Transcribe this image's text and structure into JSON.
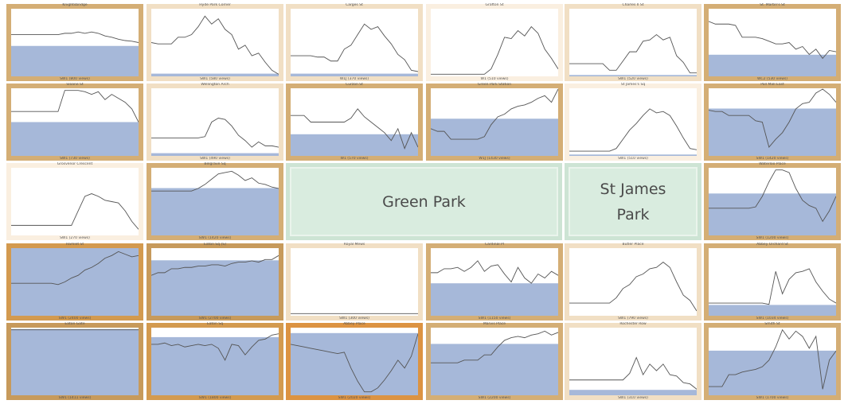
{
  "colors": {
    "border_shades": [
      "#faefe0",
      "#f1dfc4",
      "#e2c797",
      "#d4ae75",
      "#c79a5b",
      "#d39a4f",
      "#dc9342"
    ],
    "fill": "#a6b8d9",
    "line": "#555555",
    "park_fill": "#d9ecdf",
    "park_border": "#cde4d4"
  },
  "parks": [
    {
      "name": "Green Park",
      "lines": [
        "Green Park"
      ]
    },
    {
      "name": "St James Park",
      "lines": [
        "St James",
        "Park"
      ]
    }
  ],
  "chart_data": {
    "type": "line",
    "description": "Small-multiple line charts per street; blue band = median level, border shade = level",
    "panels": [
      {
        "title": "Knightsbridge",
        "footer": "SW1 (800 views)",
        "shade": 3,
        "band": 0.45,
        "values": [
          0.62,
          0.62,
          0.62,
          0.62,
          0.62,
          0.62,
          0.62,
          0.62,
          0.64,
          0.64,
          0.66,
          0.64,
          0.66,
          0.64,
          0.6,
          0.58,
          0.55,
          0.53,
          0.52,
          0.5
        ]
      },
      {
        "title": "Hyde Park Corner",
        "footer": "SW1 (580 views)",
        "shade": 1,
        "band": 0.04,
        "values": [
          0.5,
          0.48,
          0.48,
          0.48,
          0.58,
          0.58,
          0.62,
          0.74,
          0.9,
          0.78,
          0.86,
          0.7,
          0.62,
          0.4,
          0.46,
          0.3,
          0.34,
          0.2,
          0.08,
          0.02
        ]
      },
      {
        "title": "Carges St",
        "footer": "W1J (370 views)",
        "shade": 1,
        "band": 0.04,
        "values": [
          0.3,
          0.3,
          0.3,
          0.3,
          0.28,
          0.28,
          0.22,
          0.22,
          0.4,
          0.46,
          0.62,
          0.78,
          0.7,
          0.74,
          0.6,
          0.48,
          0.32,
          0.24,
          0.08,
          0.06
        ]
      },
      {
        "title": "Grafton St",
        "footer": "W1 (510 views)",
        "shade": 0,
        "band": 0.0,
        "values": [
          0.02,
          0.02,
          0.02,
          0.02,
          0.02,
          0.02,
          0.02,
          0.02,
          0.02,
          0.1,
          0.32,
          0.58,
          0.56,
          0.68,
          0.6,
          0.74,
          0.64,
          0.4,
          0.26,
          0.1
        ]
      },
      {
        "title": "Charles II St",
        "footer": "SW1 (520 views)",
        "shade": 1,
        "band": 0.02,
        "values": [
          0.18,
          0.18,
          0.18,
          0.18,
          0.18,
          0.18,
          0.08,
          0.08,
          0.22,
          0.36,
          0.36,
          0.52,
          0.54,
          0.62,
          0.54,
          0.58,
          0.3,
          0.2,
          0.04,
          0.04
        ]
      },
      {
        "title": "St. Martin's St",
        "footer": "WC2 (530 views)",
        "shade": 3,
        "band": 0.32,
        "values": [
          0.82,
          0.78,
          0.78,
          0.78,
          0.76,
          0.58,
          0.58,
          0.58,
          0.56,
          0.52,
          0.48,
          0.48,
          0.5,
          0.4,
          0.44,
          0.32,
          0.4,
          0.26,
          0.38,
          0.36
        ]
      },
      {
        "title": "Sloane St",
        "footer": "SW1 (730 views)",
        "shade": 3,
        "band": 0.5,
        "values": [
          0.66,
          0.66,
          0.66,
          0.66,
          0.66,
          0.66,
          0.66,
          0.66,
          0.98,
          0.98,
          0.98,
          0.96,
          0.92,
          0.96,
          0.84,
          0.92,
          0.86,
          0.8,
          0.7,
          0.5
        ]
      },
      {
        "title": "Wellington Arch",
        "footer": "SW1 (490 views)",
        "shade": 1,
        "band": 0.04,
        "values": [
          0.26,
          0.26,
          0.26,
          0.26,
          0.26,
          0.26,
          0.26,
          0.26,
          0.28,
          0.5,
          0.56,
          0.54,
          0.44,
          0.3,
          0.22,
          0.12,
          0.2,
          0.14,
          0.14,
          0.12
        ]
      },
      {
        "title": "Curzon St",
        "footer": "W1 (570 views)",
        "shade": 3,
        "band": 0.32,
        "values": [
          0.6,
          0.6,
          0.6,
          0.5,
          0.5,
          0.5,
          0.5,
          0.5,
          0.5,
          0.56,
          0.7,
          0.58,
          0.5,
          0.42,
          0.34,
          0.22,
          0.4,
          0.1,
          0.34,
          0.12
        ]
      },
      {
        "title": "Green Park Station",
        "footer": "W1J (1430 views)",
        "shade": 3,
        "band": 0.55,
        "values": [
          0.4,
          0.36,
          0.36,
          0.24,
          0.24,
          0.24,
          0.24,
          0.24,
          0.28,
          0.46,
          0.58,
          0.62,
          0.7,
          0.74,
          0.76,
          0.8,
          0.86,
          0.9,
          0.8,
          1.0
        ]
      },
      {
        "title": "St James's Sq",
        "footer": "SW1 (510 views)",
        "shade": 0,
        "band": 0.02,
        "values": [
          0.06,
          0.06,
          0.06,
          0.06,
          0.06,
          0.06,
          0.06,
          0.1,
          0.24,
          0.38,
          0.48,
          0.6,
          0.7,
          0.64,
          0.66,
          0.6,
          0.44,
          0.26,
          0.1,
          0.08
        ]
      },
      {
        "title": "Pall Mall East",
        "footer": "SW1 (1420 views)",
        "shade": 3,
        "band": 0.7,
        "values": [
          0.68,
          0.66,
          0.66,
          0.6,
          0.6,
          0.6,
          0.6,
          0.52,
          0.5,
          0.12,
          0.24,
          0.34,
          0.5,
          0.7,
          0.78,
          0.8,
          0.94,
          1.0,
          0.92,
          0.8
        ]
      },
      {
        "title": "Grosvenor Crescent",
        "footer": "SW1 (270 views)",
        "shade": 0,
        "band": 0.0,
        "values": [
          0.14,
          0.14,
          0.14,
          0.14,
          0.14,
          0.14,
          0.14,
          0.14,
          0.14,
          0.14,
          0.36,
          0.58,
          0.62,
          0.58,
          0.52,
          0.5,
          0.48,
          0.36,
          0.2,
          0.08
        ]
      },
      {
        "title": "Belgrave Sq",
        "footer": "SW1 (1420 views)",
        "shade": 3,
        "band": 0.7,
        "values": [
          0.66,
          0.66,
          0.66,
          0.66,
          0.66,
          0.66,
          0.66,
          0.7,
          0.76,
          0.84,
          0.92,
          0.94,
          0.96,
          0.9,
          0.82,
          0.86,
          0.78,
          0.76,
          0.72,
          0.7
        ]
      },
      {
        "title": "Waterloo Place",
        "footer": "SW1 (1200 views)",
        "shade": 3,
        "band": 0.62,
        "values": [
          0.4,
          0.4,
          0.4,
          0.4,
          0.4,
          0.4,
          0.4,
          0.42,
          0.58,
          0.8,
          0.98,
          0.98,
          0.94,
          0.7,
          0.52,
          0.44,
          0.4,
          0.2,
          0.36,
          0.58
        ]
      },
      {
        "title": "Hamlet St",
        "footer": "SW1 (2400 views)",
        "shade": 5,
        "band": 1.0,
        "values": [
          0.48,
          0.48,
          0.48,
          0.48,
          0.48,
          0.48,
          0.48,
          0.46,
          0.5,
          0.56,
          0.6,
          0.68,
          0.72,
          0.78,
          0.86,
          0.9,
          0.96,
          0.92,
          0.88,
          0.9
        ]
      },
      {
        "title": "Eaton Sq (S)",
        "footer": "SW1 (2700 views)",
        "shade": 4,
        "band": 0.82,
        "values": [
          0.6,
          0.64,
          0.64,
          0.7,
          0.7,
          0.72,
          0.72,
          0.74,
          0.74,
          0.76,
          0.76,
          0.74,
          0.78,
          0.8,
          0.8,
          0.82,
          0.8,
          0.84,
          0.84,
          0.9
        ]
      },
      {
        "title": "Royal Mews",
        "footer": "SW1 (300 views)",
        "shade": 1,
        "band": 0.0,
        "values": [
          0.02,
          0.02,
          0.02,
          0.02,
          0.02,
          0.02,
          0.02,
          0.02,
          0.02,
          0.02,
          0.02,
          0.02,
          0.02,
          0.02,
          0.02,
          0.02,
          0.02,
          0.02,
          0.02,
          0.02
        ]
      },
      {
        "title": "Cardinal Pl",
        "footer": "SW1 (1150 views)",
        "shade": 3,
        "band": 0.48,
        "values": [
          0.64,
          0.64,
          0.7,
          0.7,
          0.72,
          0.66,
          0.72,
          0.82,
          0.66,
          0.74,
          0.76,
          0.62,
          0.5,
          0.72,
          0.56,
          0.48,
          0.62,
          0.56,
          0.66,
          0.6
        ]
      },
      {
        "title": "Butler Place",
        "footer": "SW1 (790 views)",
        "shade": 1,
        "band": 0.0,
        "values": [
          0.18,
          0.18,
          0.18,
          0.18,
          0.18,
          0.18,
          0.18,
          0.26,
          0.4,
          0.46,
          0.58,
          0.62,
          0.7,
          0.72,
          0.8,
          0.72,
          0.5,
          0.3,
          0.22,
          0.06
        ]
      },
      {
        "title": "Abbey Orchard St",
        "footer": "SW1 (1034 views)",
        "shade": 3,
        "band": 0.16,
        "values": [
          0.18,
          0.18,
          0.18,
          0.18,
          0.18,
          0.18,
          0.18,
          0.18,
          0.18,
          0.16,
          0.66,
          0.32,
          0.54,
          0.64,
          0.66,
          0.7,
          0.5,
          0.36,
          0.24,
          0.18
        ]
      },
      {
        "title": "Eaton Gate",
        "footer": "SW1 (1411 views)",
        "shade": 4,
        "band": 0.98,
        "values": [
          0.98,
          0.98,
          0.98,
          0.98,
          0.98,
          0.98,
          0.98,
          0.98,
          0.98,
          0.98,
          0.98,
          0.98,
          0.98,
          0.98,
          0.98,
          0.98,
          0.98,
          0.98,
          0.98,
          0.98
        ]
      },
      {
        "title": "Eaton Sq",
        "footer": "SW1 (1800 views)",
        "shade": 5,
        "band": 0.86,
        "values": [
          0.76,
          0.76,
          0.78,
          0.74,
          0.76,
          0.72,
          0.74,
          0.76,
          0.74,
          0.76,
          0.7,
          0.52,
          0.76,
          0.74,
          0.6,
          0.72,
          0.82,
          0.84,
          0.9,
          0.92
        ]
      },
      {
        "title": "Abbey Place",
        "footer": "SW1 (2020 views)",
        "shade": 6,
        "band": 0.92,
        "values": [
          0.76,
          0.74,
          0.72,
          0.7,
          0.68,
          0.66,
          0.64,
          0.62,
          0.64,
          0.4,
          0.2,
          0.04,
          0.04,
          0.1,
          0.22,
          0.36,
          0.52,
          0.4,
          0.58,
          0.92
        ]
      },
      {
        "title": "Marvis Place",
        "footer": "SW1 (2200 views)",
        "shade": 3,
        "band": 0.76,
        "values": [
          0.48,
          0.48,
          0.48,
          0.48,
          0.48,
          0.52,
          0.52,
          0.52,
          0.6,
          0.6,
          0.72,
          0.82,
          0.86,
          0.88,
          0.86,
          0.9,
          0.92,
          0.96,
          0.9,
          0.94
        ]
      },
      {
        "title": "Rochester Row",
        "footer": "SW1 (310 views)",
        "shade": 1,
        "band": 0.08,
        "values": [
          0.22,
          0.22,
          0.22,
          0.22,
          0.22,
          0.22,
          0.22,
          0.22,
          0.22,
          0.32,
          0.56,
          0.3,
          0.46,
          0.36,
          0.46,
          0.3,
          0.28,
          0.18,
          0.16,
          0.08
        ]
      },
      {
        "title": "Smith St",
        "footer": "SW1 (1700 views)",
        "shade": 3,
        "band": 0.66,
        "values": [
          0.12,
          0.12,
          0.12,
          0.3,
          0.3,
          0.34,
          0.36,
          0.38,
          0.42,
          0.52,
          0.72,
          0.98,
          0.84,
          0.96,
          0.88,
          0.7,
          0.88,
          0.08,
          0.52,
          0.66
        ]
      }
    ]
  }
}
